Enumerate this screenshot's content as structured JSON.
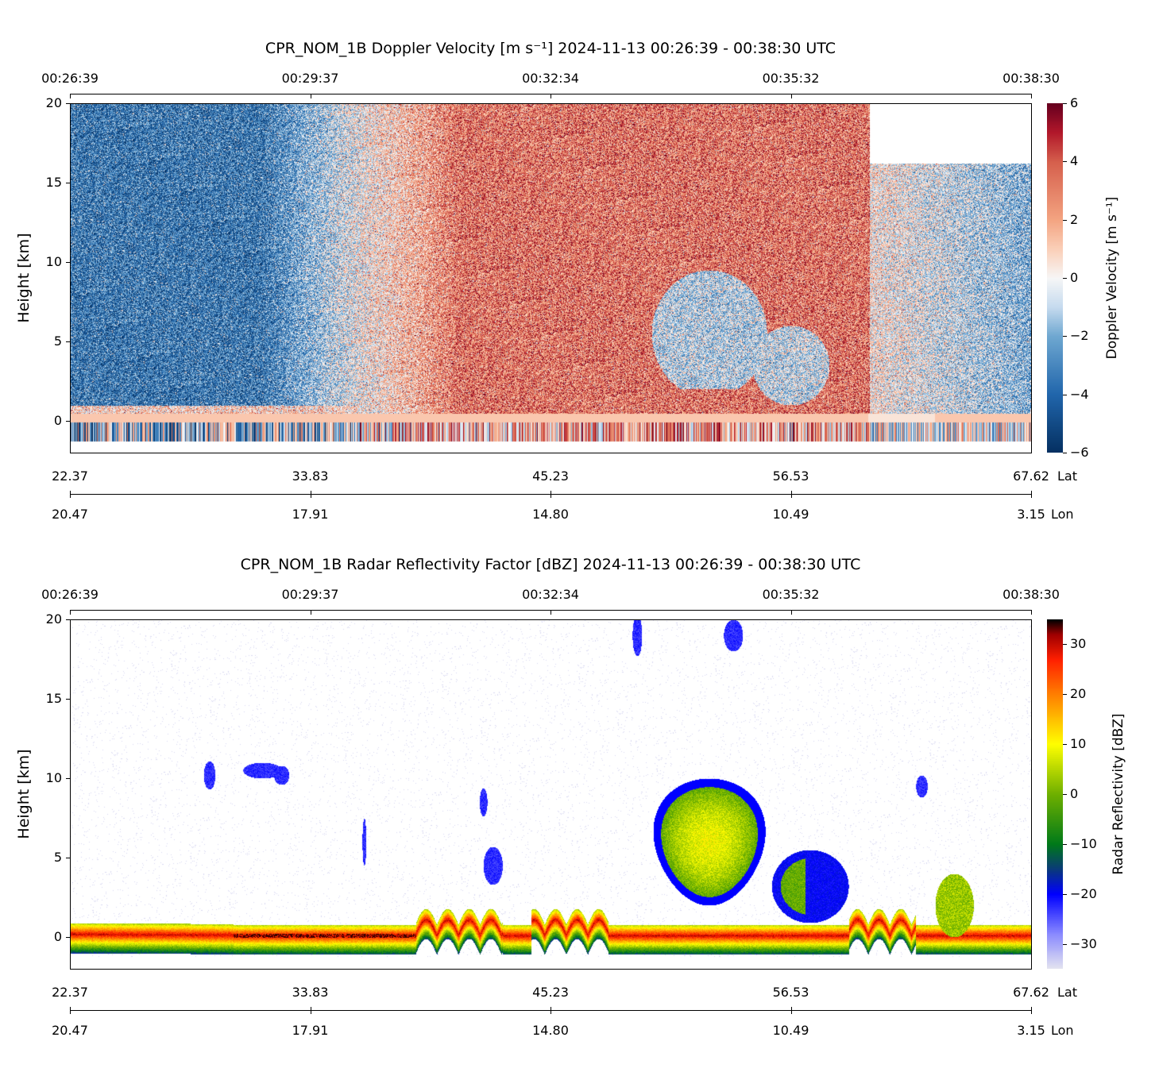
{
  "chart_data": [
    {
      "type": "heatmap",
      "title": "CPR_NOM_1B Doppler Velocity [m s⁻¹]    2024-11-13    00:26:39 - 00:38:30 UTC",
      "ylabel": "Height [km]",
      "ylim": [
        -2,
        20
      ],
      "yticks": [
        "0",
        "5",
        "10",
        "15",
        "20"
      ],
      "time_ticks": [
        "00:26:39",
        "00:29:37",
        "00:32:34",
        "00:35:32",
        "00:38:30"
      ],
      "lat_ticks": [
        "22.37",
        "33.83",
        "45.23",
        "56.53",
        "67.62"
      ],
      "lat_label": "Lat",
      "lon_ticks": [
        "20.47",
        "17.91",
        "14.80",
        "10.49",
        "3.15"
      ],
      "lon_label": "Lon",
      "colorbar": {
        "label": "Doppler Velocity [m s⁻¹]",
        "range": [
          -6,
          6
        ],
        "ticks": [
          "−6",
          "−4",
          "−2",
          "0",
          "2",
          "4",
          "6"
        ],
        "colormap": "RdBu_r"
      },
      "features": "Blue (downward ~-3 m/s) left third, transitioning to red (~+3 m/s) in middle; light-blue cloud region near 00:35 at 1-9 km; data above 16 km missing after ~00:36:30"
    },
    {
      "type": "heatmap",
      "title": "CPR_NOM_1B Radar Reflectivity Factor [dBZ]    2024-11-13    00:26:39 - 00:38:30 UTC",
      "ylabel": "Height [km]",
      "ylim": [
        -2,
        20
      ],
      "yticks": [
        "0",
        "5",
        "10",
        "15",
        "20"
      ],
      "time_ticks": [
        "00:26:39",
        "00:29:37",
        "00:32:34",
        "00:35:32",
        "00:38:30"
      ],
      "lat_ticks": [
        "22.37",
        "33.83",
        "45.23",
        "56.53",
        "67.62"
      ],
      "lat_label": "Lat",
      "lon_ticks": [
        "20.47",
        "17.91",
        "14.80",
        "10.49",
        "3.15"
      ],
      "lon_label": "Lon",
      "colorbar": {
        "label": "Radar Reflectivity [dBZ]",
        "range": [
          -35,
          35
        ],
        "ticks": [
          "−30",
          "−20",
          "−10",
          "0",
          "10",
          "20",
          "30"
        ],
        "colormap": "chiljet"
      },
      "features": "Strong surface return near 0 km; convective cloud near 00:35 reaching ~10 km with 0-10 dBZ core; thin high cirrus scattered"
    }
  ]
}
